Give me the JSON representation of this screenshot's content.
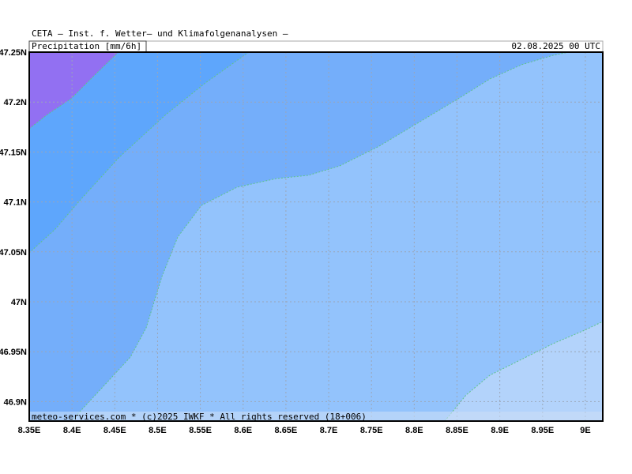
{
  "header": {
    "title": "CETA – Inst. f. Wetter– und Klimafolgenanalysen –",
    "variable": "Precipitation [mm/6h]",
    "valid_time": "02.08.2025 00 UTC"
  },
  "map": {
    "x_labels": [
      "8.35E",
      "8.4E",
      "8.45E",
      "8.5E",
      "8.55E",
      "8.6E",
      "8.65E",
      "8.7E",
      "8.75E",
      "8.8E",
      "8.85E",
      "8.9E",
      "8.95E",
      "9E"
    ],
    "y_labels": [
      "47.25N",
      "47.2N",
      "47.15N",
      "47.1N",
      "47.05N",
      "47N",
      "46.95N",
      "46.9N"
    ]
  },
  "footer": "meteo-services.com * (c)2025 IWKF * All rights reserved (18+006)"
}
